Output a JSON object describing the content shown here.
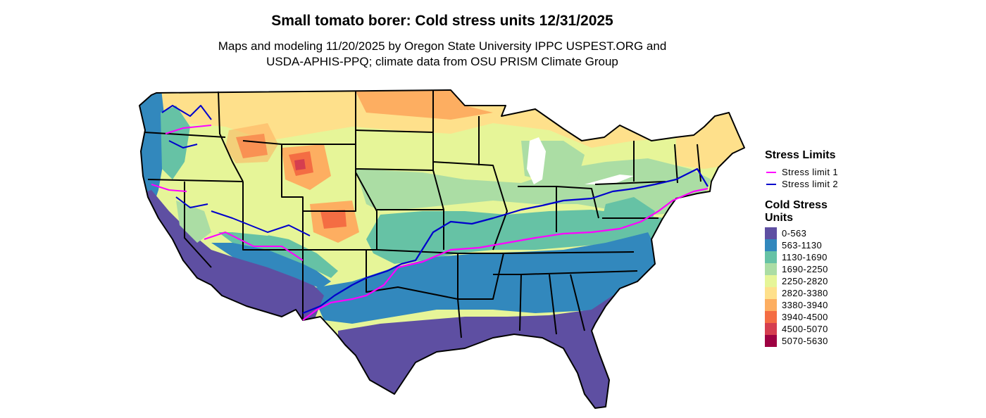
{
  "header": {
    "title": "Small tomato borer: Cold stress units 12/31/2025",
    "subtitle_line1": "Maps and modeling 11/20/2025 by Oregon State University IPPC USPEST.ORG and",
    "subtitle_line2": "USDA-APHIS-PPQ; climate data from OSU PRISM Climate Group"
  },
  "legend": {
    "limits_title": "Stress Limits",
    "limits": [
      {
        "label": "Stress limit 1",
        "color": "#ff00ff"
      },
      {
        "label": "Stress limit 2",
        "color": "#0000cc"
      }
    ],
    "scale_title": "Cold Stress Units",
    "scale": [
      {
        "label": "0-563",
        "color": "#5e4fa2"
      },
      {
        "label": "563-1130",
        "color": "#3288bd"
      },
      {
        "label": "1130-1690",
        "color": "#66c2a5"
      },
      {
        "label": "1690-2250",
        "color": "#abdda4"
      },
      {
        "label": "2250-2820",
        "color": "#e6f598"
      },
      {
        "label": "2820-3380",
        "color": "#fee08b"
      },
      {
        "label": "3380-3940",
        "color": "#fdae61"
      },
      {
        "label": "3940-4500",
        "color": "#f46d43"
      },
      {
        "label": "4500-5070",
        "color": "#d53e4f"
      },
      {
        "label": "5070-5630",
        "color": "#9e0142"
      }
    ]
  }
}
